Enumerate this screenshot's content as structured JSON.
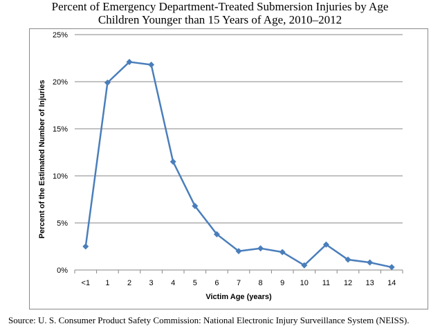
{
  "title_line1": "Percent of Emergency Department-Treated Submersion Injuries by Age",
  "title_line2": "Children Younger than 15 Years of Age, 2010–2012",
  "source": "Source:  U. S. Consumer Product Safety Commission: National Electronic Injury Surveillance System (NEISS).",
  "colors": {
    "series": "#4a7ebb",
    "grid": "#868686"
  },
  "chart_data": {
    "type": "line",
    "categories": [
      "<1",
      "1",
      "2",
      "3",
      "4",
      "5",
      "6",
      "7",
      "8",
      "9",
      "10",
      "11",
      "12",
      "13",
      "14"
    ],
    "series": [
      {
        "values": [
          2.5,
          19.9,
          22.1,
          21.8,
          11.5,
          6.8,
          3.8,
          2.0,
          2.3,
          1.9,
          0.5,
          2.7,
          1.1,
          0.8,
          0.3
        ]
      }
    ],
    "xlabel": "Victim Age (years)",
    "ylabel": "Percent of the Estimated Number of Injuries",
    "ylim": [
      0,
      25
    ],
    "yticks": [
      "0%",
      "5%",
      "10%",
      "15%",
      "20%",
      "25%"
    ],
    "ytick_values": [
      0,
      5,
      10,
      15,
      20,
      25
    ],
    "grid": true,
    "legend": "none"
  }
}
